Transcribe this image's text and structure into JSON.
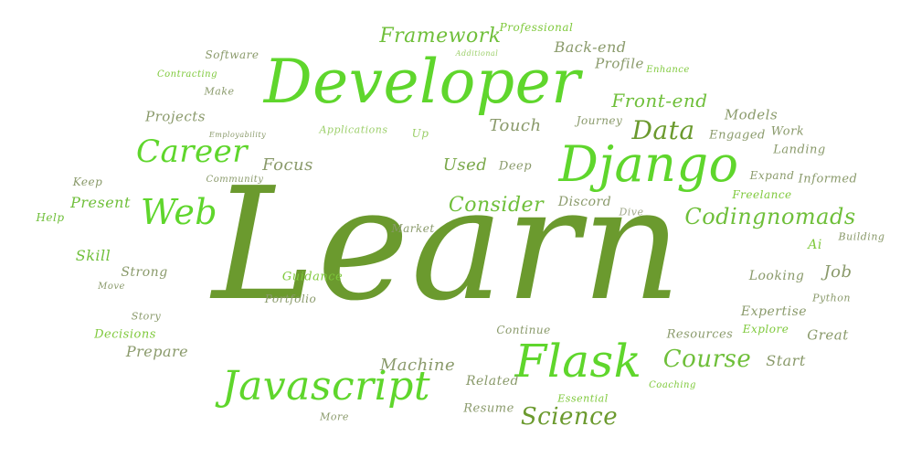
{
  "colors": {
    "primary": "#6b9a2e",
    "light": "#7fc93c",
    "bright": "#5fd62c",
    "muted": "#8a9a6b",
    "pale": "#9ccf6a"
  },
  "words": {
    "learn": "Learn",
    "developer": "Developer",
    "django": "Django",
    "flask": "Flask",
    "javascript": "Javascript",
    "career": "Career",
    "web": "Web",
    "data": "Data",
    "science": "Science",
    "course": "Course",
    "codingnomads": "Codingnomads",
    "consider": "Consider",
    "framework": "Framework",
    "front_end": "Front-end",
    "back_end": "Back-end",
    "professional": "Professional",
    "profile": "Profile",
    "software": "Software",
    "projects": "Projects",
    "touch": "Touch",
    "journey": "Journey",
    "models": "Models",
    "engaged": "Engaged",
    "work": "Work",
    "landing": "Landing",
    "focus": "Focus",
    "used": "Used",
    "deep": "Deep",
    "discord": "Discord",
    "dive": "Dive",
    "expand": "Expand",
    "informed": "Informed",
    "freelance": "Freelance",
    "keep": "Keep",
    "present": "Present",
    "help": "Help",
    "skill": "Skill",
    "strong": "Strong",
    "market": "Market",
    "guidance": "Guidance",
    "portfolio": "Portfolio",
    "story": "Story",
    "decisions": "Decisions",
    "prepare": "Prepare",
    "machine": "Machine",
    "related": "Related",
    "resume": "Resume",
    "essential": "Essential",
    "continue": "Continue",
    "resources": "Resources",
    "explore": "Explore",
    "great": "Great",
    "start": "Start",
    "coaching": "Coaching",
    "expertise": "Expertise",
    "python": "Python",
    "looking": "Looking",
    "job": "Job",
    "ai": "Ai",
    "building": "Building",
    "make": "Make",
    "contracting": "Contracting",
    "community": "Community",
    "employability": "Employability",
    "applications": "Applications",
    "up": "Up",
    "enhance": "Enhance",
    "additional": "Additional",
    "move": "Move",
    "more": "More"
  }
}
